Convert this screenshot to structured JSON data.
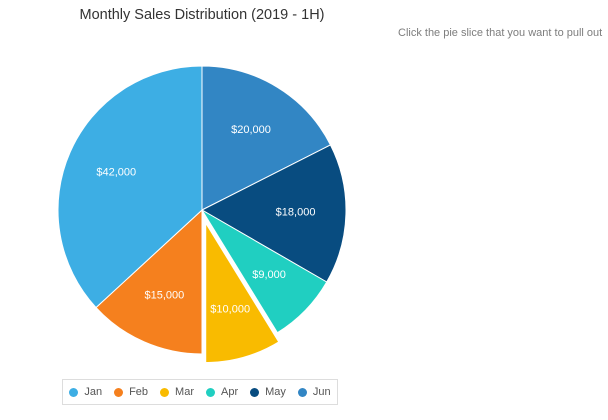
{
  "chart_data": {
    "type": "pie",
    "title": "Monthly Sales Distribution (2019 - 1H)",
    "categories": [
      "Jan",
      "Feb",
      "Mar",
      "Apr",
      "May",
      "Jun"
    ],
    "values": [
      42000,
      15000,
      10000,
      9000,
      18000,
      20000
    ],
    "data_labels": [
      "$42,000",
      "$15,000",
      "$10,000",
      "$9,000",
      "$18,000",
      "$20,000"
    ],
    "colors": [
      "#3daee4",
      "#f5801e",
      "#f9bb00",
      "#20cfc1",
      "#084c80",
      "#3286c4"
    ],
    "exploded": "Mar",
    "legend_position": "bottom"
  },
  "hint": "Click the pie slice that you want to pull out"
}
